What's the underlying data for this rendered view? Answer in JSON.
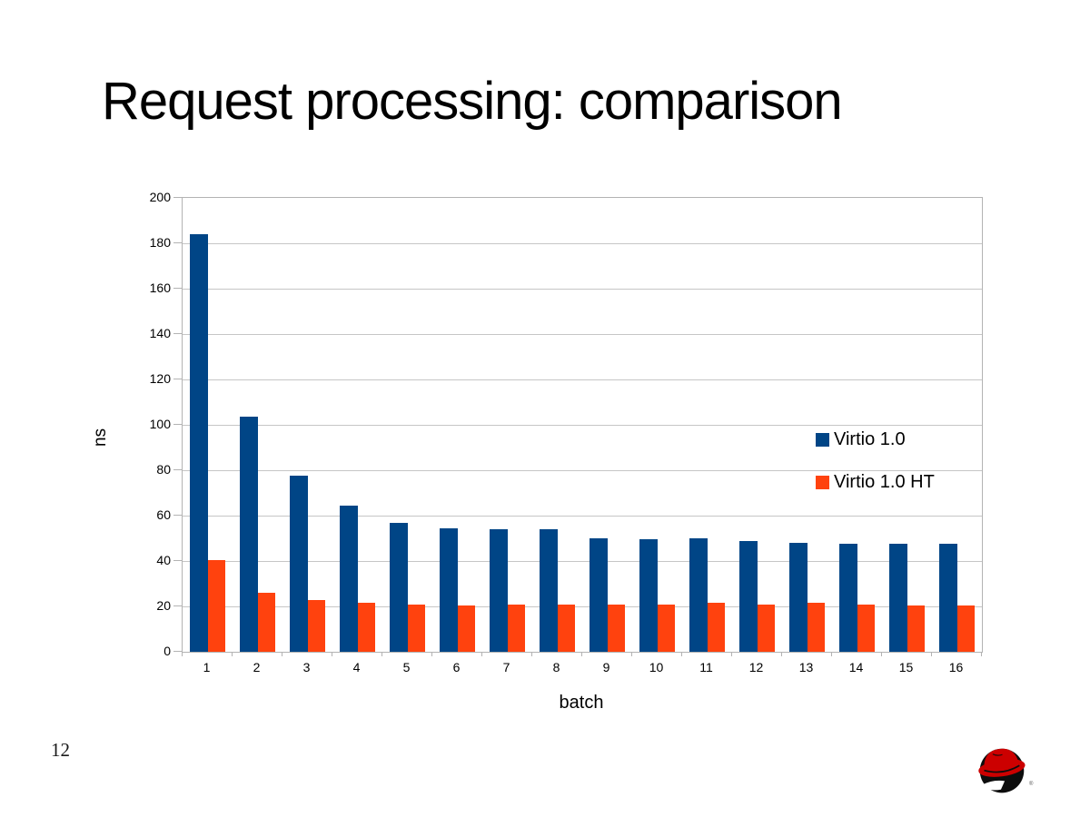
{
  "slide": {
    "title": "Request processing: comparison",
    "page_number": "12",
    "registered_mark": "®",
    "logo": "redhat-shadowman-logo"
  },
  "chart_data": {
    "type": "bar",
    "title": "",
    "xlabel": "batch",
    "ylabel": "ns",
    "ylim": [
      0,
      200
    ],
    "ytick_step": 20,
    "yticks": [
      0,
      20,
      40,
      60,
      80,
      100,
      120,
      140,
      160,
      180,
      200
    ],
    "grid": true,
    "legend_position": "inside-right",
    "categories": [
      "1",
      "2",
      "3",
      "4",
      "5",
      "6",
      "7",
      "8",
      "9",
      "10",
      "11",
      "12",
      "13",
      "14",
      "15",
      "16"
    ],
    "series": [
      {
        "name": "Virtio 1.0",
        "color": "#004586",
        "values": [
          184,
          103.5,
          77.5,
          64.5,
          57,
          54.5,
          54,
          54,
          50,
          49.5,
          50,
          49,
          48,
          47.5,
          47.5,
          47.5
        ]
      },
      {
        "name": "Virtio 1.0 HT",
        "color": "#FF420E",
        "values": [
          40.5,
          26,
          23,
          21.5,
          21,
          20.5,
          21,
          21,
          21,
          21,
          21.5,
          21,
          21.5,
          21,
          20.5,
          20.5
        ]
      }
    ]
  },
  "colors": {
    "series1": "#004586",
    "series2": "#FF420E",
    "gridline": "#c6c6c6",
    "axis": "#b3b3b3",
    "logo_red": "#cc0000",
    "logo_black": "#0d0d0d"
  }
}
